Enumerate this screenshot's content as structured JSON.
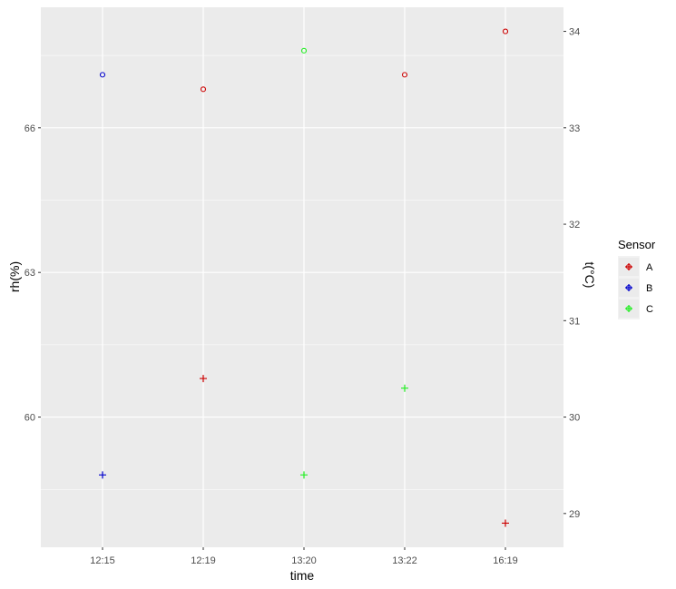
{
  "chart_data": {
    "type": "scatter",
    "title": "",
    "xlabel": "time",
    "ylabel_left": "rh(%)",
    "ylabel_right": "t(°C)",
    "x_categories": [
      "12:15",
      "12:19",
      "13:20",
      "13:22",
      "16:19"
    ],
    "y_left_ticks": [
      60,
      63,
      66
    ],
    "y_left_range": [
      57.3,
      68.5
    ],
    "y_right_ticks": [
      29,
      30,
      31,
      32,
      33,
      34
    ],
    "y_right_range": [
      28.65,
      34.25
    ],
    "grid": true,
    "legend_position": "right",
    "legend": {
      "title": "Sensor",
      "entries": [
        {
          "label": "A",
          "color": "#cc0000"
        },
        {
          "label": "B",
          "color": "#0000cc"
        },
        {
          "label": "C",
          "color": "#22ee22"
        }
      ]
    },
    "series": [
      {
        "name": "rh(%)",
        "axis": "left",
        "shape": "open-circle",
        "points": [
          {
            "x": "12:15",
            "y": 67.1,
            "sensor": "B"
          },
          {
            "x": "12:19",
            "y": 66.8,
            "sensor": "A"
          },
          {
            "x": "13:20",
            "y": 67.6,
            "sensor": "C"
          },
          {
            "x": "13:22",
            "y": 67.1,
            "sensor": "A"
          },
          {
            "x": "16:19",
            "y": 68.0,
            "sensor": "A"
          }
        ]
      },
      {
        "name": "t(°C)",
        "axis": "right",
        "shape": "plus",
        "points": [
          {
            "x": "12:15",
            "y": 29.4,
            "sensor": "B"
          },
          {
            "x": "12:19",
            "y": 30.4,
            "sensor": "A"
          },
          {
            "x": "13:20",
            "y": 29.4,
            "sensor": "C"
          },
          {
            "x": "13:22",
            "y": 30.3,
            "sensor": "C"
          },
          {
            "x": "16:19",
            "y": 28.9,
            "sensor": "A"
          }
        ]
      }
    ]
  }
}
